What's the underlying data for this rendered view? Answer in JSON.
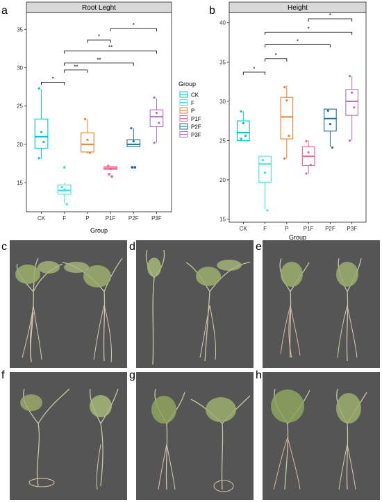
{
  "panel_letters": [
    "a",
    "b",
    "c",
    "d",
    "e",
    "f",
    "g",
    "h"
  ],
  "legend": {
    "title": "Group",
    "entries": [
      {
        "label": "CK",
        "color": "#00c5cd"
      },
      {
        "label": "F",
        "color": "#3fe0e0"
      },
      {
        "label": "P",
        "color": "#f07d2a"
      },
      {
        "label": "P1F",
        "color": "#f3638a"
      },
      {
        "label": "P2F",
        "color": "#1c6b9e"
      },
      {
        "label": "P3F",
        "color": "#b26fc7"
      }
    ]
  },
  "chart_data": [
    {
      "type": "box",
      "title": "Root Leght",
      "xlabel": "Group",
      "ylabel": "",
      "categories": [
        "CK",
        "F",
        "P",
        "P1F",
        "P2F",
        "P3F"
      ],
      "ylim": [
        11.2,
        37.2
      ],
      "yticks": [
        15,
        20,
        25,
        30,
        35
      ],
      "grid": false,
      "boxes": [
        {
          "group": "CK",
          "min": 18.1,
          "q1": 19.5,
          "median": 21.0,
          "q3": 23.3,
          "max": 27.2,
          "points": [
            27.3,
            21.6,
            20.3,
            18.2
          ],
          "outliers": []
        },
        {
          "group": "F",
          "min": 12.3,
          "q1": 13.5,
          "median": 14.0,
          "q3": 14.7,
          "max": 15.0,
          "points": [
            14.4,
            14.1,
            12.2
          ],
          "outliers": [
            17.0
          ]
        },
        {
          "group": "P",
          "min": 18.8,
          "q1": 19.0,
          "median": 20.0,
          "q3": 21.5,
          "max": 23.3,
          "points": [
            23.3,
            20.6,
            18.9
          ],
          "outliers": []
        },
        {
          "group": "P1F",
          "min": 16.7,
          "q1": 16.7,
          "median": 16.9,
          "q3": 17.1,
          "max": 17.2,
          "points": [
            17.2,
            16.8
          ],
          "outliers": [
            16.1,
            15.8
          ]
        },
        {
          "group": "P2F",
          "min": 19.7,
          "q1": 19.7,
          "median": 20.0,
          "q3": 20.6,
          "max": 22.1,
          "points": [
            22.1,
            20.4
          ],
          "outliers": [
            17.0,
            17.0
          ]
        },
        {
          "group": "P3F",
          "min": 20.2,
          "q1": 22.3,
          "median": 23.6,
          "q3": 24.5,
          "max": 26.0,
          "points": [
            26.1,
            24.1,
            22.8,
            20.2
          ],
          "outliers": []
        }
      ],
      "significance": [
        {
          "from": "CK",
          "to": "F",
          "y": 28.1,
          "label": "*"
        },
        {
          "from": "F",
          "to": "P",
          "y": 29.7,
          "label": "**"
        },
        {
          "from": "F",
          "to": "P2F",
          "y": 30.6,
          "label": "**"
        },
        {
          "from": "F",
          "to": "P3F",
          "y": 32.2,
          "label": "**"
        },
        {
          "from": "P",
          "to": "P1F",
          "y": 33.6,
          "label": "*"
        },
        {
          "from": "P1F",
          "to": "P3F",
          "y": 35.1,
          "label": "*"
        }
      ]
    },
    {
      "type": "box",
      "title": "Height",
      "xlabel": "Group",
      "ylabel": "",
      "categories": [
        "CK",
        "F",
        "P",
        "P1F",
        "P2F",
        "P3F"
      ],
      "ylim": [
        14.6,
        41.3
      ],
      "yticks": [
        15,
        20,
        25,
        30,
        35,
        40
      ],
      "grid": false,
      "boxes": [
        {
          "group": "CK",
          "min": 25.0,
          "q1": 25.0,
          "median": 26.0,
          "q3": 27.5,
          "max": 28.7,
          "points": [
            28.7,
            27.2,
            25.6,
            25.2
          ],
          "outliers": []
        },
        {
          "group": "F",
          "min": 16.2,
          "q1": 19.7,
          "median": 22.0,
          "q3": 23.0,
          "max": 23.0,
          "points": [
            22.5,
            20.9,
            16.1
          ],
          "outliers": []
        },
        {
          "group": "P",
          "min": 22.7,
          "q1": 25.2,
          "median": 28.0,
          "q3": 30.5,
          "max": 32.0,
          "points": [
            31.8,
            30.1,
            25.6,
            22.7
          ],
          "outliers": []
        },
        {
          "group": "P1F",
          "min": 20.8,
          "q1": 21.8,
          "median": 23.0,
          "q3": 24.2,
          "max": 25.0,
          "points": [
            24.9,
            23.5,
            21.9,
            20.8
          ],
          "outliers": []
        },
        {
          "group": "P2F",
          "min": 24.2,
          "q1": 26.2,
          "median": 27.8,
          "q3": 29.0,
          "max": 29.0,
          "points": [
            28.8,
            27.1,
            24.1
          ],
          "outliers": []
        },
        {
          "group": "P3F",
          "min": 25.0,
          "q1": 28.2,
          "median": 30.0,
          "q3": 31.5,
          "max": 33.2,
          "points": [
            33.2,
            31.1,
            29.2,
            25.0
          ],
          "outliers": []
        }
      ],
      "significance": [
        {
          "from": "CK",
          "to": "F",
          "y": 33.7,
          "label": "*"
        },
        {
          "from": "F",
          "to": "P",
          "y": 35.4,
          "label": "*"
        },
        {
          "from": "F",
          "to": "P2F",
          "y": 37.2,
          "label": "*"
        },
        {
          "from": "F",
          "to": "P3F",
          "y": 38.8,
          "label": "*"
        },
        {
          "from": "P1F",
          "to": "P3F",
          "y": 40.5,
          "label": "*"
        }
      ]
    }
  ]
}
